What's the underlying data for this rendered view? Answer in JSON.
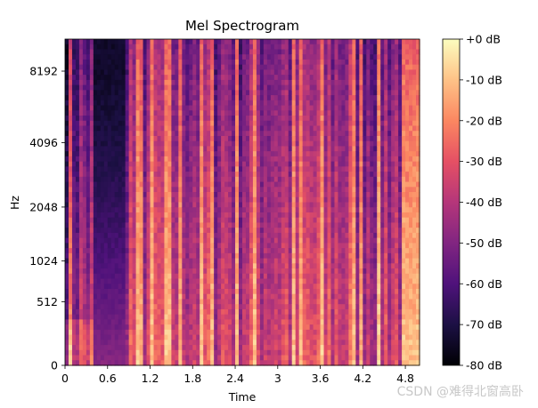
{
  "chart_data": {
    "type": "heatmap",
    "title": "Mel Spectrogram",
    "xlabel": "Time",
    "ylabel": "Hz",
    "x_ticks": [
      "0",
      "0.6",
      "1.2",
      "1.8",
      "2.4",
      "3",
      "3.6",
      "4.2",
      "4.8"
    ],
    "x_tick_values": [
      0,
      0.6,
      1.2,
      1.8,
      2.4,
      3.0,
      3.6,
      4.2,
      4.8
    ],
    "xlim": [
      0,
      5.0
    ],
    "y_ticks": [
      "0",
      "512",
      "1024",
      "2048",
      "4096",
      "8192"
    ],
    "y_tick_values": [
      0,
      512,
      1024,
      2048,
      4096,
      8192
    ],
    "y_scale": "mel",
    "ylim": [
      0,
      11025
    ],
    "colorbar": {
      "ticks": [
        "+0 dB",
        "-10 dB",
        "-20 dB",
        "-30 dB",
        "-40 dB",
        "-50 dB",
        "-60 dB",
        "-70 dB",
        "-80 dB"
      ],
      "tick_values": [
        0,
        -10,
        -20,
        -30,
        -40,
        -50,
        -60,
        -70,
        -80
      ],
      "range_db": [
        -80,
        0
      ],
      "colormap": "magma"
    },
    "silent_region_seconds": [
      0.4,
      0.85
    ],
    "grid": false
  },
  "watermark": "CSDN @难得北窗高卧"
}
